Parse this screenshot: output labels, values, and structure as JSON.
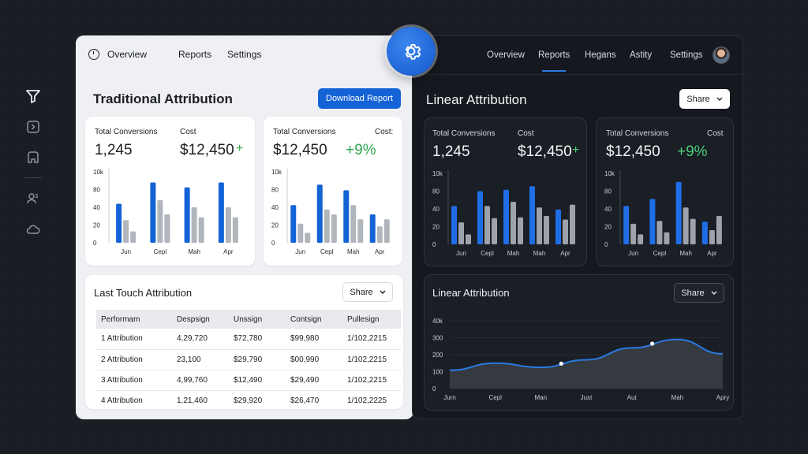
{
  "light_nav": {
    "overview": "Overview",
    "reports": "Reports",
    "settings": "Settings"
  },
  "dark_nav": {
    "overview": "Overview",
    "reports": "Reports",
    "hegans": "Hegans",
    "astity": "Astity",
    "settings": "Settings"
  },
  "traditional": {
    "title": "Traditional Attribution",
    "download": "Download Report",
    "card1": {
      "label_a": "Total Conversions",
      "value_a": "1,245",
      "label_b": "Cost",
      "value_b": "$12,450",
      "trend": "+",
      "y_ticks": [
        "10k",
        "80",
        "40",
        "20",
        "0"
      ],
      "x_ticks": [
        "Jun",
        "Cepl",
        "Mah",
        "Apr"
      ]
    },
    "card2": {
      "label_a": "Total Conversions",
      "value_a": "$12,450",
      "label_b": "Cost:",
      "value_b": "+9%",
      "y_ticks": [
        "10k",
        "80",
        "40",
        "20",
        "0"
      ],
      "x_ticks": [
        "Jun",
        "Cepl",
        "Mah",
        "Apr"
      ]
    }
  },
  "last_touch": {
    "title": "Last Touch Attribution",
    "share": "Share",
    "headers": [
      "Performam",
      "Despsign",
      "Unssign",
      "Contsign",
      "Pullesign"
    ],
    "rows": [
      [
        "1 Attribution",
        "4,29,720",
        "$72,780",
        "$99,980",
        "1/102,2215"
      ],
      [
        "2 Attribution",
        "23,100",
        "$29,790",
        "$00,990",
        "1/102,2215"
      ],
      [
        "3 Attribution",
        "4,99,760",
        "$12,490",
        "$29,490",
        "1/102,2215"
      ],
      [
        "4 Attribution",
        "1,21,460",
        "$29,920",
        "$26,470",
        "1/102,2225"
      ]
    ]
  },
  "linear": {
    "title": "Linear Attribution",
    "share": "Share",
    "card1": {
      "label_a": "Total Conversions",
      "value_a": "1,245",
      "label_b": "Cost",
      "value_b": "$12,450",
      "trend": "+",
      "y_ticks": [
        "10k",
        "80",
        "40",
        "20",
        "0"
      ],
      "x_ticks": [
        "Jun",
        "Cepl",
        "Mah",
        "Mah",
        "Apr"
      ]
    },
    "card2": {
      "label_a": "Total Conversions",
      "value_a": "$12,450",
      "label_b": "Cost",
      "value_b": "+9%",
      "y_ticks": [
        "10k",
        "80",
        "40",
        "20",
        "0"
      ],
      "x_ticks": [
        "Jun",
        "Cepl",
        "Mah",
        "Apr"
      ]
    }
  },
  "linear2": {
    "title": "Linear Attribution",
    "share": "Share",
    "y_ticks": [
      "40k",
      "300",
      "200",
      "100",
      "0"
    ],
    "x_ticks": [
      "Jurn",
      "Cepl",
      "Man",
      "Just",
      "Aut",
      "Mah",
      "Apry"
    ]
  },
  "colors": {
    "accent": "#1463d6",
    "positive": "#2fa84f",
    "positive_dark": "#4cd07a",
    "bar_grey": "#a8acb3"
  },
  "chart_data": [
    {
      "type": "bar",
      "categories": [
        "Jun",
        "Cepl",
        "Mah",
        "Apr"
      ],
      "ylim": [
        0,
        100
      ],
      "series": [
        {
          "values": [
            55,
            85,
            78,
            85
          ]
        },
        {
          "values": [
            32,
            60,
            50,
            50
          ]
        },
        {
          "values": [
            16,
            40,
            36,
            36
          ]
        }
      ]
    },
    {
      "type": "bar",
      "categories": [
        "Jun",
        "Cepl",
        "Mah",
        "Apr"
      ],
      "ylim": [
        0,
        100
      ],
      "series": [
        {
          "values": [
            53,
            82,
            74,
            40
          ]
        },
        {
          "values": [
            27,
            47,
            53,
            23
          ]
        },
        {
          "values": [
            14,
            40,
            33,
            33
          ]
        }
      ]
    },
    {
      "type": "bar",
      "categories": [
        "Jun",
        "Cepl",
        "Mah",
        "Mah",
        "Apr"
      ],
      "ylim": [
        0,
        100
      ],
      "series": [
        {
          "values": [
            54,
            75,
            77,
            82,
            49
          ]
        },
        {
          "values": [
            31,
            54,
            60,
            52,
            35
          ]
        },
        {
          "values": [
            14,
            37,
            38,
            40,
            56
          ]
        }
      ]
    },
    {
      "type": "bar",
      "categories": [
        "Jun",
        "Cepl",
        "Mah",
        "Apr"
      ],
      "ylim": [
        0,
        100
      ],
      "series": [
        {
          "values": [
            54,
            64,
            88,
            32
          ]
        },
        {
          "values": [
            29,
            33,
            52,
            20
          ]
        },
        {
          "values": [
            14,
            17,
            36,
            40
          ]
        }
      ]
    },
    {
      "type": "area",
      "x": [
        "Jurn",
        "Cepl",
        "Man",
        "Just",
        "Aut",
        "Mah",
        "Apry"
      ],
      "values": [
        108,
        150,
        125,
        170,
        240,
        290,
        205
      ],
      "ylim": [
        0,
        400
      ]
    }
  ]
}
